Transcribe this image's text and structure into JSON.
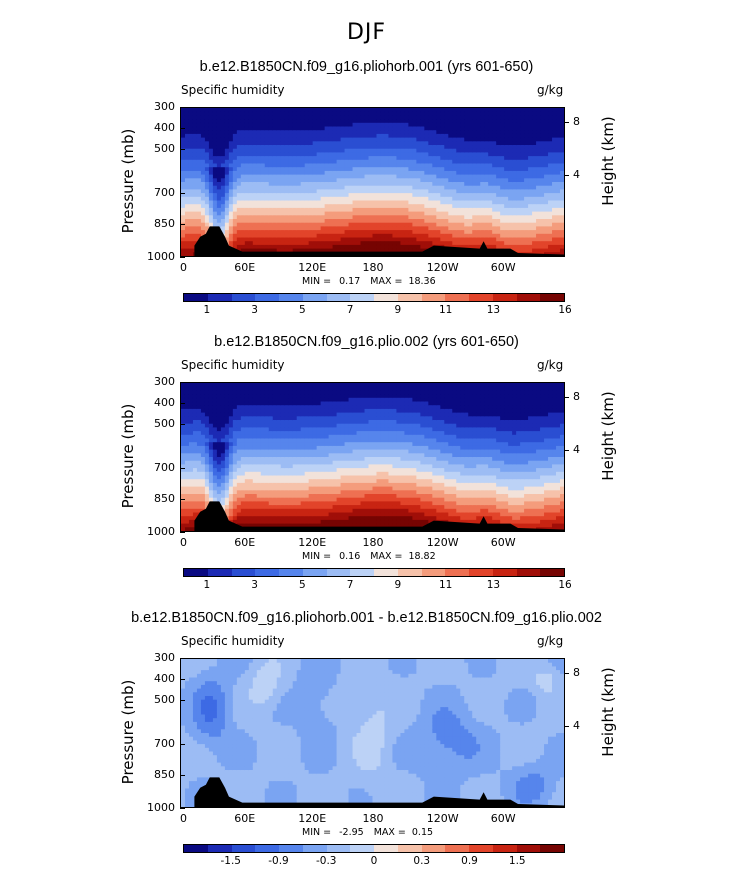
{
  "season": "DJF",
  "chart_data": [
    {
      "type": "heatmap",
      "title": "b.e12.B1850CN.f09_g16.pliohorb.001 (yrs 601-650)",
      "variable": "Specific humidity",
      "units": "g/kg",
      "ylabel": "Pressure (mb)",
      "y2label": "Height (km)",
      "x_ticks": [
        "0",
        "60E",
        "120E",
        "180",
        "120W",
        "60W"
      ],
      "y_ticks": [
        "300",
        "400",
        "500",
        "700",
        "850",
        "1000"
      ],
      "y2_ticks": [
        "8",
        "4"
      ],
      "min": "0.17",
      "max": "18.36",
      "colorbar_labels": [
        "1",
        "3",
        "5",
        "7",
        "9",
        "11",
        "13",
        "16"
      ],
      "colors": [
        "#0a0a82",
        "#1c2ab4",
        "#2a4ed2",
        "#3d6ae4",
        "#5685ec",
        "#7aa4f2",
        "#9cbcf4",
        "#bcd2f6",
        "#f2e2da",
        "#f6c2aa",
        "#f49c7c",
        "#ee7052",
        "#e2442a",
        "#c82412",
        "#a00e08",
        "#760402"
      ]
    },
    {
      "type": "heatmap",
      "title": "b.e12.B1850CN.f09_g16.plio.002 (yrs 601-650)",
      "variable": "Specific humidity",
      "units": "g/kg",
      "ylabel": "Pressure (mb)",
      "y2label": "Height (km)",
      "x_ticks": [
        "0",
        "60E",
        "120E",
        "180",
        "120W",
        "60W"
      ],
      "y_ticks": [
        "300",
        "400",
        "500",
        "700",
        "850",
        "1000"
      ],
      "y2_ticks": [
        "8",
        "4"
      ],
      "min": "0.16",
      "max": "18.82",
      "colorbar_labels": [
        "1",
        "3",
        "5",
        "7",
        "9",
        "11",
        "13",
        "16"
      ],
      "colors": [
        "#0a0a82",
        "#1c2ab4",
        "#2a4ed2",
        "#3d6ae4",
        "#5685ec",
        "#7aa4f2",
        "#9cbcf4",
        "#bcd2f6",
        "#f2e2da",
        "#f6c2aa",
        "#f49c7c",
        "#ee7052",
        "#e2442a",
        "#c82412",
        "#a00e08",
        "#760402"
      ]
    },
    {
      "type": "heatmap",
      "title": "b.e12.B1850CN.f09_g16.pliohorb.001 - b.e12.B1850CN.f09_g16.plio.002",
      "variable": "Specific humidity",
      "units": "g/kg",
      "ylabel": "Pressure (mb)",
      "y2label": "Height (km)",
      "x_ticks": [
        "0",
        "60E",
        "120E",
        "180",
        "120W",
        "60W"
      ],
      "y_ticks": [
        "300",
        "400",
        "500",
        "700",
        "850",
        "1000"
      ],
      "y2_ticks": [
        "8",
        "4"
      ],
      "min": "-2.95",
      "max": "0.15",
      "colorbar_labels": [
        "-1.5",
        "-0.9",
        "-0.3",
        "0",
        "0.3",
        "0.9",
        "1.5"
      ],
      "colors": [
        "#0a0a82",
        "#1c2ab4",
        "#2a4ed2",
        "#3d6ae4",
        "#5685ec",
        "#7aa4f2",
        "#9cbcf4",
        "#bcd2f6",
        "#f2e2da",
        "#f6c2aa",
        "#f49c7c",
        "#ee7052",
        "#e2442a",
        "#c82412",
        "#a00e08",
        "#760402"
      ]
    }
  ],
  "labels": {
    "min": "MIN =",
    "max": "MAX ="
  }
}
